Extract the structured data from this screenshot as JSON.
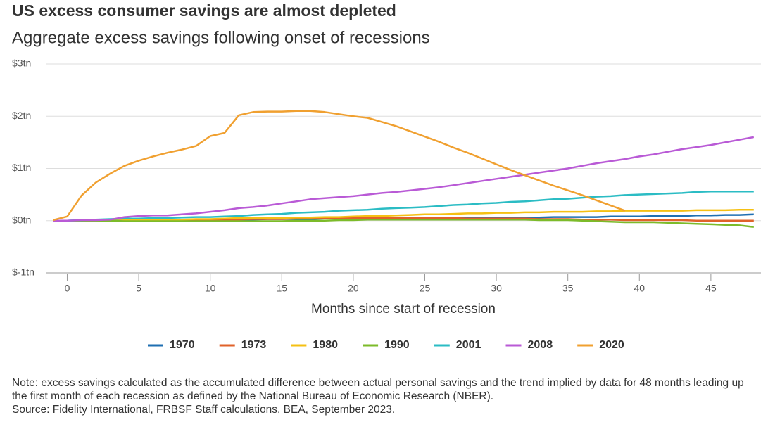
{
  "chart_data": {
    "type": "line",
    "title": "US excess consumer savings are almost depleted",
    "subtitle": "Aggregate excess savings following onset of recessions",
    "x_label": "Months since start of recession",
    "note": "Note: excess savings calculated as the accumulated difference between actual personal savings and the trend implied by data for 48 months leading up the first month of each recession as defined by the National Bureau of Economic Research (NBER).",
    "source": "Source: Fidelity International, FRBSF Staff calculations, BEA, September 2023.",
    "x": [
      -1,
      0,
      1,
      2,
      3,
      4,
      5,
      6,
      7,
      8,
      9,
      10,
      11,
      12,
      13,
      14,
      15,
      16,
      17,
      18,
      19,
      20,
      21,
      22,
      23,
      24,
      25,
      26,
      27,
      28,
      29,
      30,
      31,
      32,
      33,
      34,
      35,
      36,
      37,
      38,
      39,
      40,
      41,
      42,
      43,
      44,
      45,
      46,
      47,
      48
    ],
    "xlim": [
      -1.5,
      48.5
    ],
    "xticks": [
      0,
      5,
      10,
      15,
      20,
      25,
      30,
      35,
      40,
      45
    ],
    "ylim": [
      -1,
      3
    ],
    "yticks": [
      {
        "value": -1,
        "label": "$-1tn"
      },
      {
        "value": 0,
        "label": "$0tn"
      },
      {
        "value": 1,
        "label": "$1tn"
      },
      {
        "value": 2,
        "label": "$2tn"
      },
      {
        "value": 3,
        "label": "$3tn"
      }
    ],
    "grid": true,
    "legend": "bottom",
    "series": [
      {
        "name": "1970",
        "color": "#1f6fb2",
        "values": [
          0,
          0,
          0.01,
          0.01,
          0.01,
          0.01,
          0.01,
          0.01,
          0.01,
          0.01,
          0.01,
          0.02,
          0.02,
          0.02,
          0.02,
          0.03,
          0.03,
          0.03,
          0.03,
          0.04,
          0.04,
          0.04,
          0.05,
          0.05,
          0.05,
          0.05,
          0.05,
          0.05,
          0.06,
          0.06,
          0.06,
          0.06,
          0.06,
          0.06,
          0.06,
          0.07,
          0.07,
          0.07,
          0.07,
          0.08,
          0.08,
          0.08,
          0.09,
          0.09,
          0.09,
          0.1,
          0.1,
          0.11,
          0.11,
          0.12
        ]
      },
      {
        "name": "1973",
        "color": "#e0622a",
        "values": [
          0,
          0,
          0,
          0,
          0.01,
          0.01,
          0.01,
          0.01,
          0.01,
          0.01,
          0.01,
          0.02,
          0.02,
          0.02,
          0.03,
          0.03,
          0.03,
          0.04,
          0.04,
          0.04,
          0.05,
          0.05,
          0.05,
          0.05,
          0.05,
          0.05,
          0.05,
          0.05,
          0.05,
          0.04,
          0.04,
          0.04,
          0.04,
          0.04,
          0.03,
          0.03,
          0.03,
          0.02,
          0.02,
          0.02,
          0.01,
          0.01,
          0.01,
          0.01,
          0.01,
          0,
          0,
          0,
          0,
          0
        ]
      },
      {
        "name": "1980",
        "color": "#f5c013",
        "values": [
          0,
          0,
          0,
          -0.01,
          0,
          0.01,
          0.01,
          0.01,
          0.02,
          0.02,
          0.03,
          0.03,
          0.04,
          0.05,
          0.05,
          0.05,
          0.05,
          0.06,
          0.06,
          0.07,
          0.07,
          0.08,
          0.09,
          0.09,
          0.1,
          0.11,
          0.12,
          0.12,
          0.13,
          0.14,
          0.14,
          0.15,
          0.15,
          0.16,
          0.16,
          0.17,
          0.17,
          0.17,
          0.18,
          0.18,
          0.19,
          0.19,
          0.19,
          0.19,
          0.19,
          0.2,
          0.2,
          0.2,
          0.21,
          0.21
        ]
      },
      {
        "name": "1990",
        "color": "#7cbb2a",
        "values": [
          0,
          0,
          0,
          0,
          0,
          -0.01,
          -0.01,
          -0.01,
          -0.01,
          -0.01,
          -0.01,
          -0.01,
          -0.01,
          -0.01,
          -0.01,
          -0.01,
          -0.01,
          0,
          0,
          0,
          0.01,
          0.01,
          0.02,
          0.02,
          0.02,
          0.02,
          0.02,
          0.02,
          0.02,
          0.02,
          0.02,
          0.02,
          0.02,
          0.02,
          0.01,
          0.01,
          0.01,
          0,
          -0.01,
          -0.02,
          -0.03,
          -0.03,
          -0.03,
          -0.04,
          -0.05,
          -0.06,
          -0.07,
          -0.08,
          -0.09,
          -0.12
        ]
      },
      {
        "name": "2001",
        "color": "#2bbcc4",
        "values": [
          0,
          0,
          0.01,
          0.02,
          0.03,
          0.04,
          0.04,
          0.05,
          0.05,
          0.06,
          0.07,
          0.07,
          0.08,
          0.09,
          0.11,
          0.12,
          0.13,
          0.15,
          0.16,
          0.17,
          0.19,
          0.2,
          0.21,
          0.23,
          0.24,
          0.25,
          0.26,
          0.28,
          0.3,
          0.31,
          0.33,
          0.34,
          0.36,
          0.37,
          0.39,
          0.41,
          0.42,
          0.44,
          0.46,
          0.47,
          0.49,
          0.5,
          0.51,
          0.52,
          0.53,
          0.55,
          0.56,
          0.56,
          0.56,
          0.56
        ]
      },
      {
        "name": "2008",
        "color": "#b95ad6",
        "values": [
          0,
          0,
          0.01,
          0.01,
          0.02,
          0.07,
          0.09,
          0.1,
          0.1,
          0.12,
          0.14,
          0.17,
          0.2,
          0.24,
          0.26,
          0.29,
          0.33,
          0.37,
          0.41,
          0.43,
          0.45,
          0.47,
          0.5,
          0.53,
          0.55,
          0.58,
          0.61,
          0.64,
          0.68,
          0.72,
          0.76,
          0.8,
          0.84,
          0.88,
          0.92,
          0.96,
          1.0,
          1.05,
          1.1,
          1.14,
          1.18,
          1.23,
          1.27,
          1.32,
          1.37,
          1.41,
          1.45,
          1.5,
          1.55,
          1.6
        ]
      },
      {
        "name": "2020",
        "color": "#f0a030",
        "values": [
          0.01,
          0.08,
          0.48,
          0.73,
          0.9,
          1.05,
          1.15,
          1.23,
          1.3,
          1.36,
          1.43,
          1.62,
          1.68,
          2.02,
          2.08,
          2.09,
          2.09,
          2.1,
          2.1,
          2.08,
          2.04,
          2.0,
          1.97,
          1.89,
          1.81,
          1.71,
          1.61,
          1.51,
          1.4,
          1.3,
          1.19,
          1.08,
          0.97,
          0.87,
          0.77,
          0.67,
          0.58,
          0.49,
          0.39,
          0.29,
          0.19,
          null,
          null,
          null,
          null,
          null,
          null,
          null,
          null,
          null
        ]
      }
    ]
  }
}
